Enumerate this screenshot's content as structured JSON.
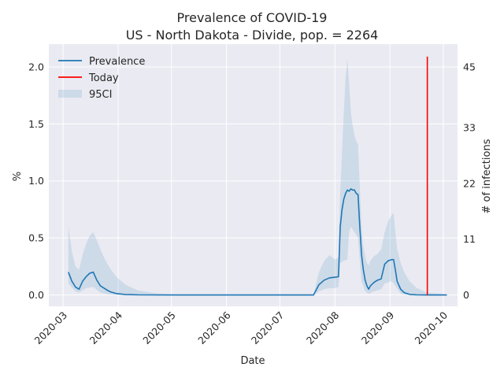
{
  "chart_data": {
    "type": "line",
    "title": "Prevalence of COVID-19",
    "subtitle": "US - North Dakota - Divide, pop. = 2264",
    "xlabel": "Date",
    "ylabel": "%",
    "y2label": "# of infections",
    "x_ticks": [
      "2020-03",
      "2020-04",
      "2020-05",
      "2020-06",
      "2020-07",
      "2020-08",
      "2020-09",
      "2020-10"
    ],
    "y_ticks": [
      "0.0",
      "0.5",
      "1.0",
      "1.5",
      "2.0"
    ],
    "y2_ticks": [
      "0",
      "11",
      "22",
      "33",
      "45"
    ],
    "ylim": [
      -0.1,
      2.2
    ],
    "grid": true,
    "legend_position": "top-left",
    "legend": [
      "Prevalence",
      "Today",
      "95CI"
    ],
    "today": "2020-09-22",
    "colors": {
      "prevalence": "#1f77b4",
      "today": "#ff0000",
      "ci": "#1f77b4",
      "background": "#eaeaf2",
      "grid": "#ffffff"
    },
    "series": [
      {
        "name": "Prevalence",
        "points": [
          [
            "2020-03-04",
            0.2
          ],
          [
            "2020-03-06",
            0.12
          ],
          [
            "2020-03-08",
            0.07
          ],
          [
            "2020-03-10",
            0.05
          ],
          [
            "2020-03-12",
            0.12
          ],
          [
            "2020-03-14",
            0.16
          ],
          [
            "2020-03-16",
            0.19
          ],
          [
            "2020-03-18",
            0.2
          ],
          [
            "2020-03-20",
            0.13
          ],
          [
            "2020-03-22",
            0.08
          ],
          [
            "2020-03-24",
            0.06
          ],
          [
            "2020-03-26",
            0.04
          ],
          [
            "2020-03-28",
            0.025
          ],
          [
            "2020-03-31",
            0.012
          ],
          [
            "2020-04-05",
            0.004
          ],
          [
            "2020-04-12",
            0.001
          ],
          [
            "2020-05-01",
            0.0
          ],
          [
            "2020-07-20",
            0.0
          ],
          [
            "2020-07-23",
            0.09
          ],
          [
            "2020-07-26",
            0.13
          ],
          [
            "2020-07-29",
            0.15
          ],
          [
            "2020-08-01",
            0.155
          ],
          [
            "2020-08-03",
            0.16
          ],
          [
            "2020-08-04",
            0.6
          ],
          [
            "2020-08-05",
            0.75
          ],
          [
            "2020-08-06",
            0.84
          ],
          [
            "2020-08-07",
            0.89
          ],
          [
            "2020-08-08",
            0.92
          ],
          [
            "2020-08-09",
            0.91
          ],
          [
            "2020-08-10",
            0.93
          ],
          [
            "2020-08-11",
            0.92
          ],
          [
            "2020-08-12",
            0.92
          ],
          [
            "2020-08-13",
            0.89
          ],
          [
            "2020-08-14",
            0.88
          ],
          [
            "2020-08-15",
            0.6
          ],
          [
            "2020-08-16",
            0.35
          ],
          [
            "2020-08-17",
            0.22
          ],
          [
            "2020-08-18",
            0.13
          ],
          [
            "2020-08-19",
            0.08
          ],
          [
            "2020-08-20",
            0.05
          ],
          [
            "2020-08-21",
            0.08
          ],
          [
            "2020-08-23",
            0.11
          ],
          [
            "2020-08-25",
            0.13
          ],
          [
            "2020-08-27",
            0.14
          ],
          [
            "2020-08-29",
            0.27
          ],
          [
            "2020-08-31",
            0.3
          ],
          [
            "2020-09-02",
            0.31
          ],
          [
            "2020-09-03",
            0.31
          ],
          [
            "2020-09-04",
            0.22
          ],
          [
            "2020-09-05",
            0.12
          ],
          [
            "2020-09-07",
            0.05
          ],
          [
            "2020-09-09",
            0.02
          ],
          [
            "2020-09-12",
            0.005
          ],
          [
            "2020-09-16",
            0.001
          ],
          [
            "2020-09-22",
            0.0
          ],
          [
            "2020-10-03",
            0.0
          ]
        ]
      },
      {
        "name": "95CI",
        "upper": [
          [
            "2020-03-04",
            0.6
          ],
          [
            "2020-03-06",
            0.38
          ],
          [
            "2020-03-08",
            0.25
          ],
          [
            "2020-03-10",
            0.22
          ],
          [
            "2020-03-12",
            0.35
          ],
          [
            "2020-03-14",
            0.45
          ],
          [
            "2020-03-16",
            0.52
          ],
          [
            "2020-03-18",
            0.55
          ],
          [
            "2020-03-20",
            0.48
          ],
          [
            "2020-03-22",
            0.4
          ],
          [
            "2020-03-24",
            0.33
          ],
          [
            "2020-03-26",
            0.27
          ],
          [
            "2020-03-28",
            0.22
          ],
          [
            "2020-03-31",
            0.16
          ],
          [
            "2020-04-05",
            0.09
          ],
          [
            "2020-04-12",
            0.04
          ],
          [
            "2020-04-22",
            0.015
          ],
          [
            "2020-05-01",
            0.005
          ],
          [
            "2020-07-20",
            0.005
          ],
          [
            "2020-07-23",
            0.2
          ],
          [
            "2020-07-26",
            0.3
          ],
          [
            "2020-07-29",
            0.35
          ],
          [
            "2020-08-01",
            0.31
          ],
          [
            "2020-08-03",
            0.33
          ],
          [
            "2020-08-04",
            0.9
          ],
          [
            "2020-08-05",
            1.25
          ],
          [
            "2020-08-06",
            1.6
          ],
          [
            "2020-08-07",
            1.9
          ],
          [
            "2020-08-08",
            2.07
          ],
          [
            "2020-08-09",
            1.85
          ],
          [
            "2020-08-10",
            1.6
          ],
          [
            "2020-08-11",
            1.48
          ],
          [
            "2020-08-12",
            1.4
          ],
          [
            "2020-08-13",
            1.35
          ],
          [
            "2020-08-14",
            1.32
          ],
          [
            "2020-08-15",
            0.95
          ],
          [
            "2020-08-16",
            0.6
          ],
          [
            "2020-08-17",
            0.42
          ],
          [
            "2020-08-18",
            0.34
          ],
          [
            "2020-08-19",
            0.28
          ],
          [
            "2020-08-20",
            0.26
          ],
          [
            "2020-08-21",
            0.3
          ],
          [
            "2020-08-23",
            0.34
          ],
          [
            "2020-08-25",
            0.36
          ],
          [
            "2020-08-27",
            0.4
          ],
          [
            "2020-08-29",
            0.55
          ],
          [
            "2020-08-31",
            0.65
          ],
          [
            "2020-09-02",
            0.7
          ],
          [
            "2020-09-03",
            0.72
          ],
          [
            "2020-09-04",
            0.55
          ],
          [
            "2020-09-05",
            0.4
          ],
          [
            "2020-09-07",
            0.28
          ],
          [
            "2020-09-09",
            0.2
          ],
          [
            "2020-09-12",
            0.12
          ],
          [
            "2020-09-16",
            0.06
          ],
          [
            "2020-09-22",
            0.02
          ],
          [
            "2020-10-03",
            0.005
          ]
        ],
        "lower": [
          [
            "2020-03-04",
            0.1
          ],
          [
            "2020-03-08",
            0.03
          ],
          [
            "2020-03-10",
            0.02
          ],
          [
            "2020-03-14",
            0.06
          ],
          [
            "2020-03-18",
            0.07
          ],
          [
            "2020-03-22",
            0.02
          ],
          [
            "2020-03-26",
            0.005
          ],
          [
            "2020-04-01",
            0.0
          ],
          [
            "2020-07-20",
            0.0
          ],
          [
            "2020-07-23",
            0.03
          ],
          [
            "2020-07-26",
            0.05
          ],
          [
            "2020-07-29",
            0.06
          ],
          [
            "2020-08-01",
            0.06
          ],
          [
            "2020-08-03",
            0.07
          ],
          [
            "2020-08-04",
            0.28
          ],
          [
            "2020-08-06",
            0.3
          ],
          [
            "2020-08-08",
            0.31
          ],
          [
            "2020-08-09",
            0.55
          ],
          [
            "2020-08-10",
            0.6
          ],
          [
            "2020-08-12",
            0.55
          ],
          [
            "2020-08-14",
            0.5
          ],
          [
            "2020-08-15",
            0.3
          ],
          [
            "2020-08-16",
            0.12
          ],
          [
            "2020-08-18",
            0.03
          ],
          [
            "2020-08-20",
            0.01
          ],
          [
            "2020-08-23",
            0.03
          ],
          [
            "2020-08-27",
            0.05
          ],
          [
            "2020-08-29",
            0.1
          ],
          [
            "2020-09-02",
            0.12
          ],
          [
            "2020-09-04",
            0.08
          ],
          [
            "2020-09-07",
            0.01
          ],
          [
            "2020-09-10",
            0.0
          ],
          [
            "2020-10-03",
            0.0
          ]
        ]
      }
    ]
  }
}
